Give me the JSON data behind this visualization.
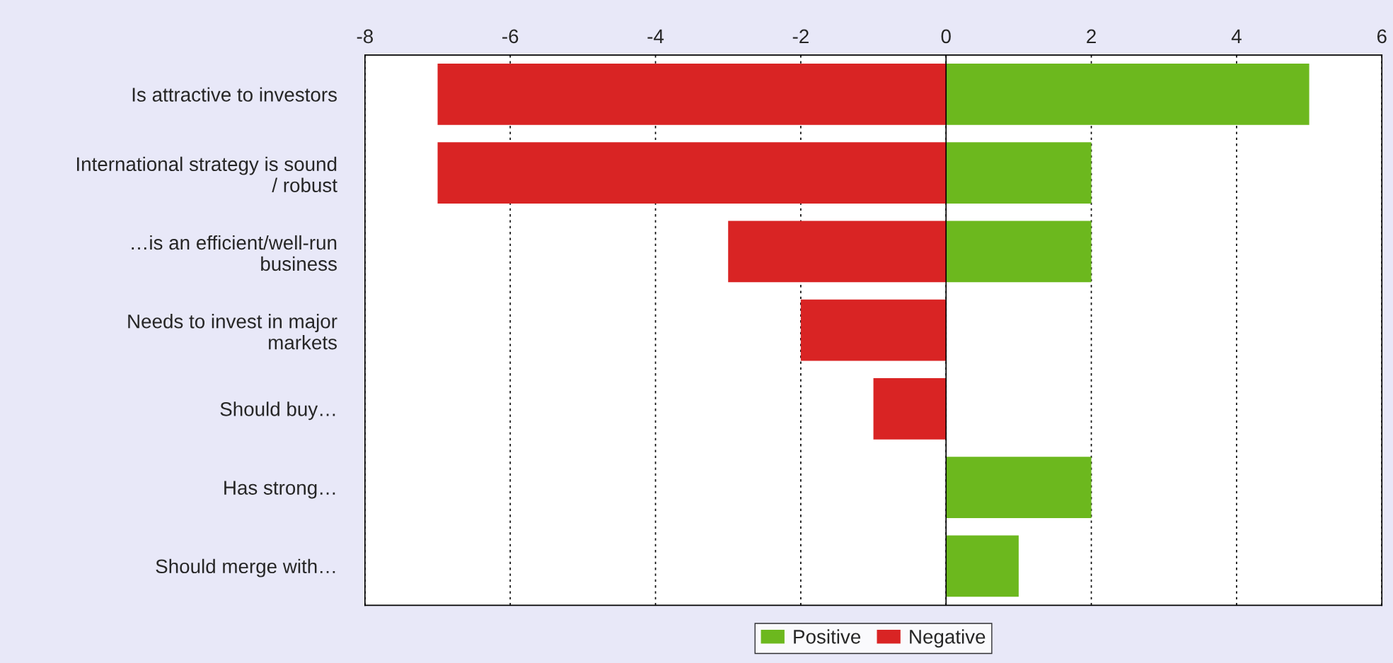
{
  "chart_data": {
    "type": "bar",
    "orientation": "horizontal",
    "categories": [
      "Is attractive to investors",
      "International strategy is sound\n/ robust",
      "…is an efficient/well-run\nbusiness",
      "Needs to invest in major\nmarkets",
      "Should buy…",
      "Has strong…",
      "Should merge with…"
    ],
    "series": [
      {
        "name": "Positive",
        "color": "#6cb81e",
        "values": [
          5,
          2,
          2,
          null,
          null,
          2,
          1
        ]
      },
      {
        "name": "Negative",
        "color": "#d92424",
        "values": [
          -7,
          -7,
          -3,
          -2,
          -1,
          null,
          null
        ]
      }
    ],
    "xlim": [
      -8,
      6
    ],
    "xticks": [
      -8,
      -6,
      -4,
      -2,
      0,
      2,
      4,
      6
    ],
    "grid": "x",
    "legend": "bottom"
  }
}
